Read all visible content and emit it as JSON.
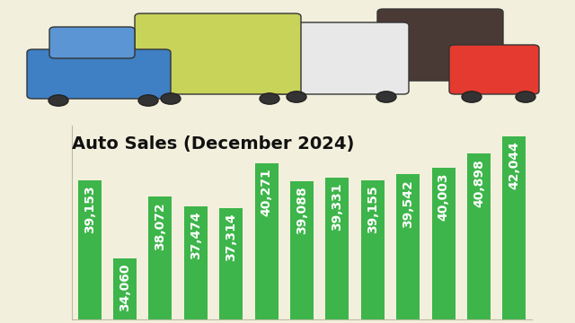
{
  "chart_data": {
    "type": "bar",
    "title": "Auto Sales (December 2024)",
    "categories": [
      null,
      null,
      null,
      null,
      null,
      null,
      null,
      null,
      null,
      null,
      null,
      null,
      null
    ],
    "values": [
      39153,
      34060,
      38072,
      37474,
      37314,
      40271,
      39088,
      39331,
      39155,
      39542,
      40003,
      40898,
      42044
    ],
    "value_labels": [
      "39,153",
      "34,060",
      "38,072",
      "37,474",
      "37,314",
      "40,271",
      "39,088",
      "39,331",
      "39,155",
      "39,542",
      "40,003",
      "40,898",
      "42,044"
    ],
    "color": "#3db54a",
    "ylim": [
      30000,
      42750
    ],
    "tick_labels": false,
    "data_labels": true,
    "grid": false
  }
}
